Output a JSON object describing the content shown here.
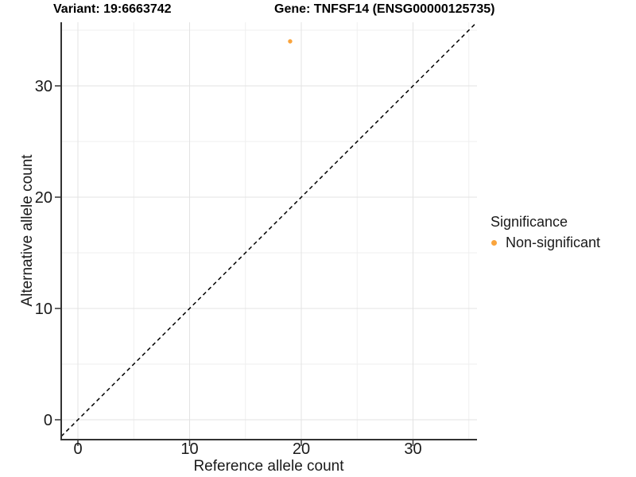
{
  "titles": {
    "variant": "Variant: 19:6663742",
    "gene": "Gene: TNFSF14 (ENSG00000125735)"
  },
  "axes": {
    "x_label": "Reference allele count",
    "y_label": "Alternative allele count"
  },
  "legend": {
    "title": "Significance",
    "items": [
      {
        "label": "Non-significant",
        "color": "#FAA43C"
      }
    ]
  },
  "colors": {
    "point": "#FAA43C",
    "grid_major": "#e3e3e3",
    "grid_minor": "#efefef",
    "axis_line": "#333333",
    "tick_mark": "#333333",
    "text": "#1a1a1a",
    "identity_line": "#000000",
    "background": "#ffffff"
  },
  "chart_data": {
    "type": "scatter",
    "title": "Variant: 19:6663742 | Gene: TNFSF14 (ENSG00000125735)",
    "xlabel": "Reference allele count",
    "ylabel": "Alternative allele count",
    "xlim": [
      -1.5,
      35.7
    ],
    "ylim": [
      -1.8,
      35.7
    ],
    "x_major_ticks": [
      0,
      10,
      20,
      30
    ],
    "y_major_ticks": [
      0,
      10,
      20,
      30
    ],
    "x_minor_ticks": [
      5,
      15,
      25,
      35
    ],
    "y_minor_ticks": [
      5,
      15,
      25,
      35
    ],
    "grid": true,
    "legend_position": "right",
    "series": [
      {
        "name": "Non-significant",
        "color": "#FAA43C",
        "points": [
          {
            "x": 19,
            "y": 34
          }
        ]
      }
    ],
    "reference_line": {
      "type": "identity-diagonal",
      "equation": "y = x",
      "style": "dashed",
      "color": "#000000"
    }
  }
}
